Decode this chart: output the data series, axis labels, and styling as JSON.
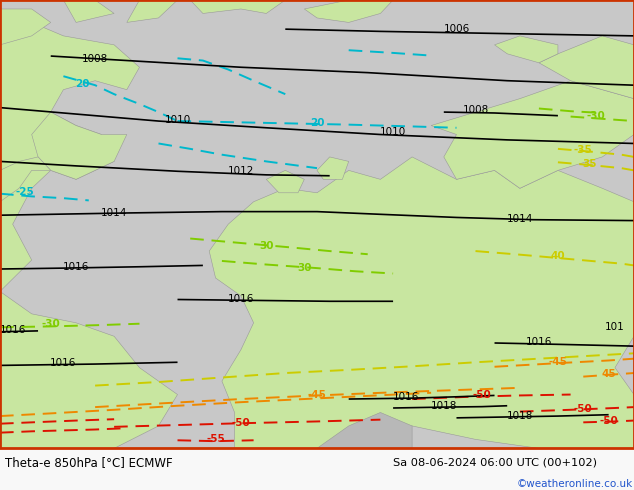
{
  "title_left": "Theta-e 850hPa [°C] ECMWF",
  "title_right": "Sa 08-06-2024 06:00 UTC (00+102)",
  "credit": "©weatheronline.co.uk",
  "sea_color": "#c8c8c8",
  "land_green_color": "#c8e6a0",
  "land_gray_color": "#b8b8b8",
  "isobar_color": "#000000",
  "theta_cyan_color": "#00b8cc",
  "theta_green_color": "#80cc00",
  "theta_yellow_color": "#cccc00",
  "theta_orange_color": "#ee8800",
  "theta_red_color": "#dd1100",
  "bottom_bar_color": "#f0f0f0",
  "border_color": "#cc3300",
  "fig_width": 6.34,
  "fig_height": 4.9,
  "dpi": 100
}
